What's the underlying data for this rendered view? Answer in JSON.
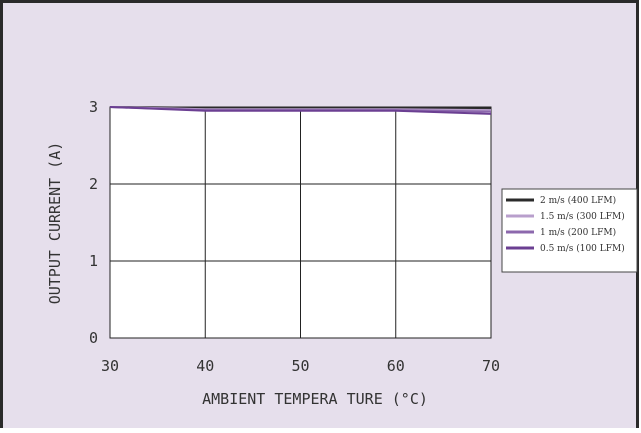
{
  "chart_data": {
    "type": "line",
    "title": "",
    "xlabel": "AMBIENT TEMPERA TURE (°C)",
    "ylabel": "OUTPUT CURRENT (A)",
    "xlim": [
      30,
      70
    ],
    "ylim": [
      0,
      3
    ],
    "x_ticks": [
      30,
      40,
      50,
      60,
      70
    ],
    "y_ticks": [
      0,
      1,
      2,
      3
    ],
    "grid": true,
    "legend_position": "right",
    "x": [
      30,
      40,
      50,
      60,
      70
    ],
    "series": [
      {
        "name": "2 m/s (400 LFM)",
        "color": "#2b2b2b",
        "values": [
          3.0,
          2.99,
          2.99,
          2.99,
          2.98
        ]
      },
      {
        "name": "1.5 m/s (300 LFM)",
        "color": "#b89fcc",
        "values": [
          3.0,
          2.97,
          2.97,
          2.97,
          2.96
        ]
      },
      {
        "name": "1 m/s (200 LFM)",
        "color": "#8c68ad",
        "values": [
          3.0,
          2.96,
          2.96,
          2.96,
          2.94
        ]
      },
      {
        "name": "0.5 m/s (100 LFM)",
        "color": "#6b3f92",
        "values": [
          3.0,
          2.95,
          2.95,
          2.95,
          2.91
        ]
      }
    ]
  }
}
